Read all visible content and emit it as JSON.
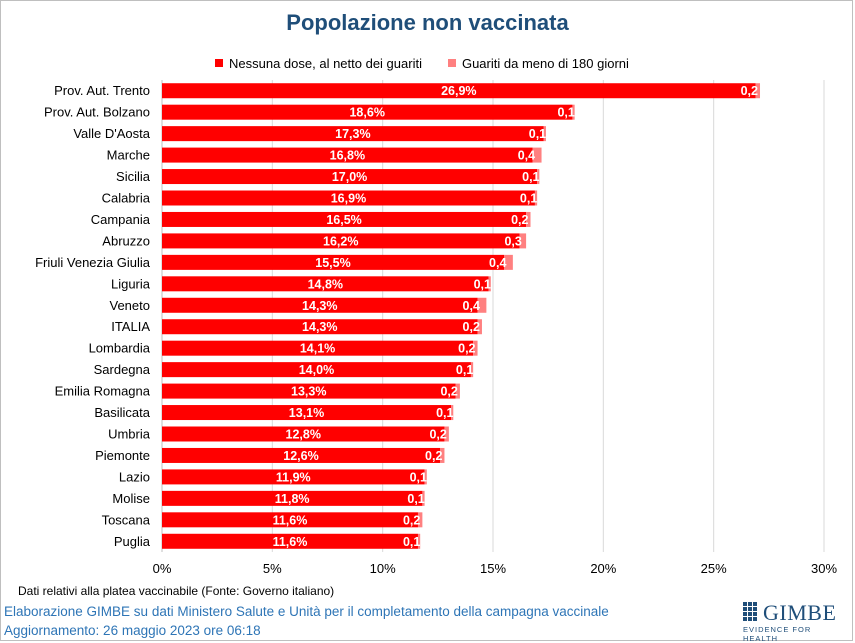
{
  "title": "Popolazione non vaccinata",
  "legend": {
    "series1": "Nessuna dose, al netto dei guariti",
    "series2": "Guariti da meno di 180 giorni"
  },
  "colors": {
    "series1": "#ff0000",
    "series2": "#ff8080",
    "title": "#1f4e79",
    "credit": "#2e75b6"
  },
  "chart_data": {
    "type": "bar",
    "orientation": "horizontal",
    "stacked": true,
    "title": "Popolazione non vaccinata",
    "categories": [
      "Prov. Aut. Trento",
      "Prov. Aut. Bolzano",
      "Valle D'Aosta",
      "Marche",
      "Sicilia",
      "Calabria",
      "Campania",
      "Abruzzo",
      "Friuli Venezia Giulia",
      "Liguria",
      "Veneto",
      "ITALIA",
      "Lombardia",
      "Sardegna",
      "Emilia Romagna",
      "Basilicata",
      "Umbria",
      "Piemonte",
      "Lazio",
      "Molise",
      "Toscana",
      "Puglia"
    ],
    "series": [
      {
        "name": "Nessuna dose, al netto dei guariti",
        "values": [
          26.9,
          18.6,
          17.3,
          16.8,
          17.0,
          16.9,
          16.5,
          16.2,
          15.5,
          14.8,
          14.3,
          14.3,
          14.1,
          14.0,
          13.3,
          13.1,
          12.8,
          12.6,
          11.9,
          11.8,
          11.6,
          11.6
        ],
        "labels": [
          "26,9%",
          "18,6%",
          "17,3%",
          "16,8%",
          "17,0%",
          "16,9%",
          "16,5%",
          "16,2%",
          "15,5%",
          "14,8%",
          "14,3%",
          "14,3%",
          "14,1%",
          "14,0%",
          "13,3%",
          "13,1%",
          "12,8%",
          "12,6%",
          "11,9%",
          "11,8%",
          "11,6%",
          "11,6%"
        ]
      },
      {
        "name": "Guariti da meno di 180 giorni",
        "values": [
          0.2,
          0.1,
          0.1,
          0.4,
          0.1,
          0.1,
          0.2,
          0.3,
          0.4,
          0.1,
          0.4,
          0.2,
          0.2,
          0.1,
          0.2,
          0.1,
          0.2,
          0.2,
          0.1,
          0.1,
          0.2,
          0.1
        ],
        "labels": [
          "0,2",
          "0,1",
          "0,1",
          "0,4",
          "0,1",
          "0,1",
          "0,2",
          "0,3",
          "0,4",
          "0,1",
          "0,4",
          "0,2",
          "0,2",
          "0,1",
          "0,2",
          "0,1",
          "0,2",
          "0,2",
          "0,1",
          "0,1",
          "0,2",
          "0,1"
        ]
      }
    ],
    "xlim": [
      0,
      30
    ],
    "xticks": [
      0,
      5,
      10,
      15,
      20,
      25,
      30
    ],
    "xtick_labels": [
      "0%",
      "5%",
      "10%",
      "15%",
      "20%",
      "25%",
      "30%"
    ],
    "grid": true,
    "legend_position": "top"
  },
  "footnote": "Dati relativi alla platea vaccinabile (Fonte: Governo italiano)",
  "credit": "Elaborazione GIMBE su dati Ministero Salute e Unità per il completamento della campagna vaccinale",
  "update": "Aggiornamento: 26 maggio 2023 ore 06:18",
  "logo": {
    "name": "GIMBE",
    "tagline": "EVIDENCE FOR HEALTH"
  }
}
